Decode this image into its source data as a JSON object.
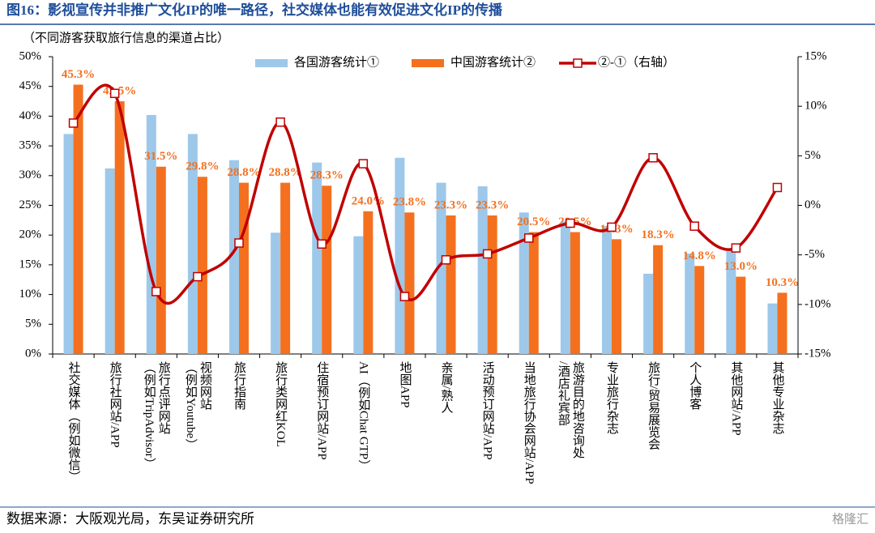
{
  "chart_data": {
    "type": "bar-line",
    "title": "图16：影视宣传并非推广文化IP的唯一路径，社交媒体也能有效促进文化IP的传播",
    "subtitle": "（不同游客获取旅行信息的渠道占比）",
    "source": "数据来源：大阪观光局，东吴证券研究所",
    "watermark": "格隆汇",
    "categories": [
      "社交媒体（例如微信）",
      "旅行社网站/APP",
      "旅行点评网站\n（例如TripAdvisor）",
      "视频网站\n（例如Youtube）",
      "旅行指南",
      "旅行类网红KOL",
      "住宿预订网站/APP",
      "AI（例如Chat GTP）",
      "地图APP",
      "亲属/熟人",
      "活动预订网站/APP",
      "当地旅行协会网站/APP",
      "旅游目的地咨询处\n/酒店礼宾部",
      "专业旅行杂志",
      "旅行/贸易展览会",
      "个人博客",
      "其他网站/APP",
      "其他专业杂志"
    ],
    "series": [
      {
        "name": "各国游客统计①",
        "color": "#9DC8EA",
        "values": [
          37.0,
          31.2,
          40.2,
          37.0,
          32.6,
          20.4,
          32.2,
          19.8,
          33.0,
          28.8,
          28.2,
          23.8,
          22.3,
          21.5,
          13.5,
          16.9,
          17.3,
          8.5
        ]
      },
      {
        "name": "中国游客统计②",
        "color": "#F4701E",
        "values": [
          45.3,
          42.5,
          31.5,
          29.8,
          28.8,
          28.8,
          28.3,
          24.0,
          23.8,
          23.3,
          23.3,
          20.5,
          20.5,
          19.3,
          18.3,
          14.8,
          13.0,
          10.3
        ],
        "value_labels": [
          "45.3%",
          "42.5%",
          "31.5%",
          "29.8%",
          "28.8%",
          "28.8%",
          "28.3%",
          "24.0%",
          "23.8%",
          "23.3%",
          "23.3%",
          "20.5%",
          "20.5%",
          "19.3%",
          "18.3%",
          "14.8%",
          "13.0%",
          "10.3%"
        ]
      },
      {
        "name": "②-①（右轴）",
        "color": "#C00000",
        "axis": "y2",
        "type": "line",
        "values": [
          8.3,
          11.3,
          -8.7,
          -7.2,
          -3.8,
          8.4,
          -3.9,
          4.2,
          -9.2,
          -5.5,
          -4.9,
          -3.3,
          -1.8,
          -2.2,
          4.8,
          -2.1,
          -4.3,
          1.8
        ]
      }
    ],
    "ylim": [
      0,
      50
    ],
    "yticks": [
      {
        "value": 0,
        "label": "0%"
      },
      {
        "value": 5,
        "label": "5%"
      },
      {
        "value": 10,
        "label": "10%"
      },
      {
        "value": 15,
        "label": "15%"
      },
      {
        "value": 20,
        "label": "20%"
      },
      {
        "value": 25,
        "label": "25%"
      },
      {
        "value": 30,
        "label": "30%"
      },
      {
        "value": 35,
        "label": "35%"
      },
      {
        "value": 40,
        "label": "40%"
      },
      {
        "value": 45,
        "label": "45%"
      },
      {
        "value": 50,
        "label": "50%"
      }
    ],
    "y2lim": [
      -15,
      15
    ],
    "y2ticks": [
      {
        "value": -15,
        "label": "-15%"
      },
      {
        "value": -10,
        "label": "-10%"
      },
      {
        "value": -5,
        "label": "-5%"
      },
      {
        "value": 0,
        "label": "0%"
      },
      {
        "value": 5,
        "label": "5%"
      },
      {
        "value": 10,
        "label": "10%"
      },
      {
        "value": 15,
        "label": "15%"
      }
    ],
    "grid": false
  }
}
